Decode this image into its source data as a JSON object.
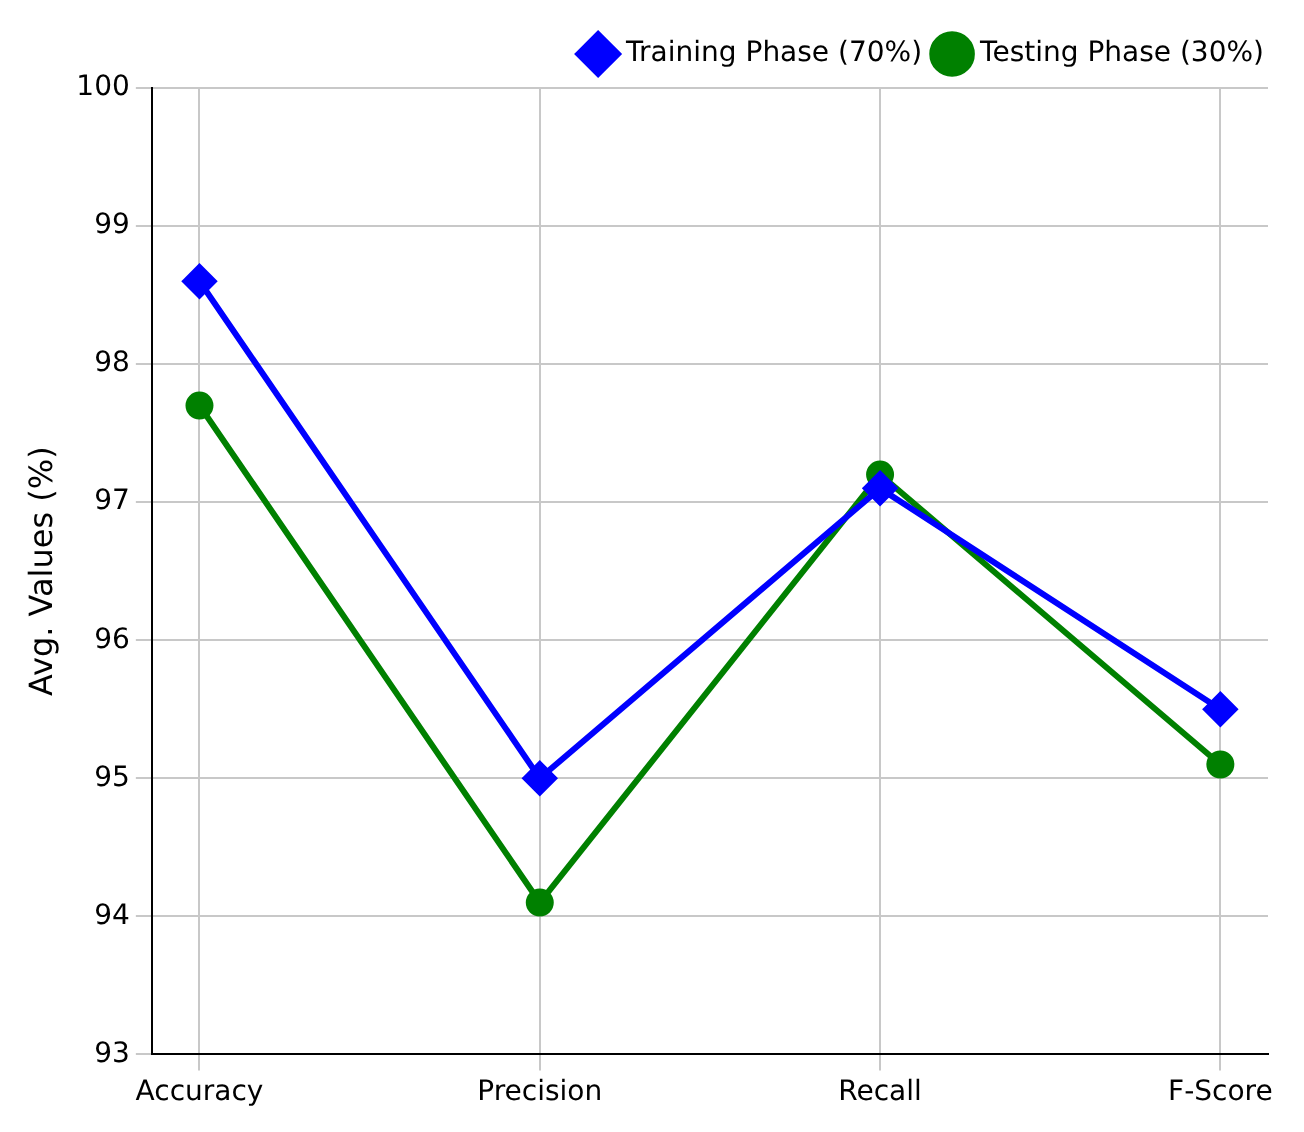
{
  "chart_data": {
    "type": "line",
    "ylabel": "Avg. Values (%)",
    "categories": [
      "Accuracy",
      "Precision",
      "Recall",
      "F-Score"
    ],
    "series": [
      {
        "name": "Training Phase (70%)",
        "color": "#0000ff",
        "marker": "diamond",
        "values": [
          98.6,
          95.0,
          97.1,
          95.5
        ]
      },
      {
        "name": "Testing Phase (30%)",
        "color": "#008000",
        "marker": "circle",
        "values": [
          97.7,
          94.1,
          97.2,
          95.1
        ]
      }
    ],
    "ylim": [
      93,
      100
    ],
    "yticks": [
      93,
      94,
      95,
      96,
      97,
      98,
      99,
      100
    ],
    "grid": true,
    "legend": "top right",
    "line_style": "solid"
  }
}
